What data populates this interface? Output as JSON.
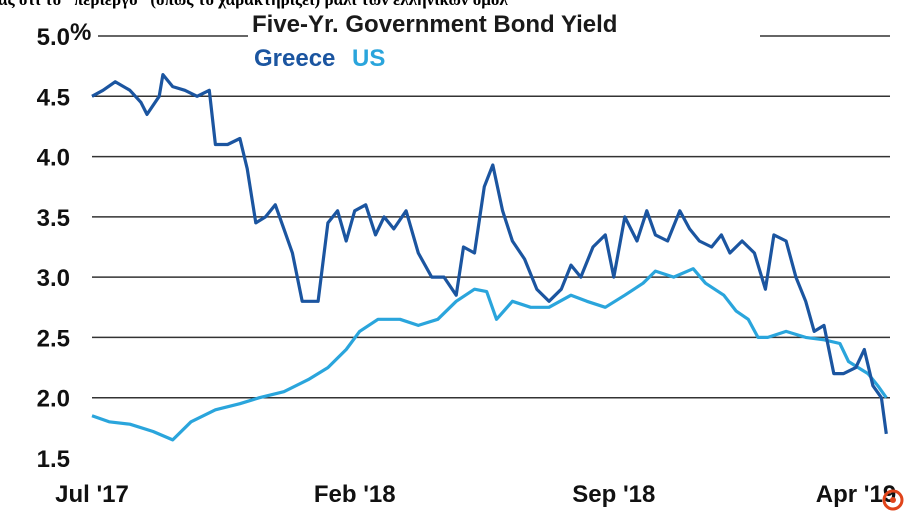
{
  "top_text": "ας ότι το “περιεργο” (όπως το χαρακτηρίζει) ράλι των ελληνικών ομολ",
  "chart_data": {
    "type": "line",
    "title": "Five-Yr. Government Bond Yield",
    "xlabel": "",
    "ylabel": "",
    "y_unit_label": "%",
    "ylim": [
      1.5,
      5.0
    ],
    "y_ticks": [
      "5.0",
      "4.5",
      "4.0",
      "3.5",
      "3.0",
      "2.5",
      "2.0",
      "1.5"
    ],
    "y_tick_values": [
      5.0,
      4.5,
      4.0,
      3.5,
      3.0,
      2.5,
      2.0,
      1.5
    ],
    "x_ticks": [
      "Jul '17",
      "Feb '18",
      "Sep '18",
      "Apr '19"
    ],
    "x_tick_dates": [
      "2017-07-01",
      "2018-02-01",
      "2018-09-01",
      "2019-04-01"
    ],
    "xlim": [
      "2017-07-01",
      "2019-04-15"
    ],
    "grid": "horizontal",
    "legend_position": "top-left",
    "series": [
      {
        "name": "Greece",
        "color": "#1b55a0",
        "points": [
          [
            "2017-07-01",
            4.5
          ],
          [
            "2017-07-10",
            4.55
          ],
          [
            "2017-07-20",
            4.62
          ],
          [
            "2017-08-01",
            4.55
          ],
          [
            "2017-08-10",
            4.45
          ],
          [
            "2017-08-15",
            4.35
          ],
          [
            "2017-08-25",
            4.5
          ],
          [
            "2017-08-28",
            4.68
          ],
          [
            "2017-09-05",
            4.58
          ],
          [
            "2017-09-15",
            4.55
          ],
          [
            "2017-09-25",
            4.5
          ],
          [
            "2017-10-05",
            4.55
          ],
          [
            "2017-10-10",
            4.1
          ],
          [
            "2017-10-20",
            4.1
          ],
          [
            "2017-10-30",
            4.15
          ],
          [
            "2017-11-05",
            3.9
          ],
          [
            "2017-11-12",
            3.45
          ],
          [
            "2017-11-20",
            3.5
          ],
          [
            "2017-11-28",
            3.6
          ],
          [
            "2017-12-05",
            3.4
          ],
          [
            "2017-12-12",
            3.2
          ],
          [
            "2017-12-20",
            2.8
          ],
          [
            "2018-01-02",
            2.8
          ],
          [
            "2018-01-10",
            3.45
          ],
          [
            "2018-01-18",
            3.55
          ],
          [
            "2018-01-25",
            3.3
          ],
          [
            "2018-02-01",
            3.55
          ],
          [
            "2018-02-10",
            3.6
          ],
          [
            "2018-02-18",
            3.35
          ],
          [
            "2018-02-25",
            3.5
          ],
          [
            "2018-03-05",
            3.4
          ],
          [
            "2018-03-15",
            3.55
          ],
          [
            "2018-03-25",
            3.2
          ],
          [
            "2018-04-05",
            3.0
          ],
          [
            "2018-04-15",
            3.0
          ],
          [
            "2018-04-25",
            2.85
          ],
          [
            "2018-05-01",
            3.25
          ],
          [
            "2018-05-10",
            3.2
          ],
          [
            "2018-05-18",
            3.75
          ],
          [
            "2018-05-25",
            3.93
          ],
          [
            "2018-06-02",
            3.55
          ],
          [
            "2018-06-10",
            3.3
          ],
          [
            "2018-06-20",
            3.15
          ],
          [
            "2018-06-30",
            2.9
          ],
          [
            "2018-07-10",
            2.8
          ],
          [
            "2018-07-20",
            2.9
          ],
          [
            "2018-07-28",
            3.1
          ],
          [
            "2018-08-05",
            3.0
          ],
          [
            "2018-08-15",
            3.25
          ],
          [
            "2018-08-25",
            3.35
          ],
          [
            "2018-09-01",
            3.0
          ],
          [
            "2018-09-10",
            3.5
          ],
          [
            "2018-09-20",
            3.3
          ],
          [
            "2018-09-28",
            3.55
          ],
          [
            "2018-10-05",
            3.35
          ],
          [
            "2018-10-15",
            3.3
          ],
          [
            "2018-10-25",
            3.55
          ],
          [
            "2018-11-02",
            3.4
          ],
          [
            "2018-11-10",
            3.3
          ],
          [
            "2018-11-20",
            3.25
          ],
          [
            "2018-11-28",
            3.35
          ],
          [
            "2018-12-05",
            3.2
          ],
          [
            "2018-12-15",
            3.3
          ],
          [
            "2018-12-25",
            3.2
          ],
          [
            "2019-01-03",
            2.9
          ],
          [
            "2019-01-10",
            3.35
          ],
          [
            "2019-01-20",
            3.3
          ],
          [
            "2019-01-28",
            3.0
          ],
          [
            "2019-02-05",
            2.8
          ],
          [
            "2019-02-12",
            2.55
          ],
          [
            "2019-02-20",
            2.6
          ],
          [
            "2019-02-28",
            2.2
          ],
          [
            "2019-03-08",
            2.2
          ],
          [
            "2019-03-18",
            2.25
          ],
          [
            "2019-03-25",
            2.4
          ],
          [
            "2019-04-01",
            2.1
          ],
          [
            "2019-04-08",
            2.0
          ],
          [
            "2019-04-12",
            1.7
          ]
        ]
      },
      {
        "name": "US",
        "color": "#2aa5dc",
        "points": [
          [
            "2017-07-01",
            1.85
          ],
          [
            "2017-07-15",
            1.8
          ],
          [
            "2017-08-01",
            1.78
          ],
          [
            "2017-08-20",
            1.72
          ],
          [
            "2017-09-05",
            1.65
          ],
          [
            "2017-09-20",
            1.8
          ],
          [
            "2017-10-10",
            1.9
          ],
          [
            "2017-10-30",
            1.95
          ],
          [
            "2017-11-15",
            2.0
          ],
          [
            "2017-12-05",
            2.05
          ],
          [
            "2017-12-25",
            2.15
          ],
          [
            "2018-01-10",
            2.25
          ],
          [
            "2018-01-25",
            2.4
          ],
          [
            "2018-02-05",
            2.55
          ],
          [
            "2018-02-20",
            2.65
          ],
          [
            "2018-03-10",
            2.65
          ],
          [
            "2018-03-25",
            2.6
          ],
          [
            "2018-04-10",
            2.65
          ],
          [
            "2018-04-25",
            2.8
          ],
          [
            "2018-05-10",
            2.9
          ],
          [
            "2018-05-20",
            2.88
          ],
          [
            "2018-05-28",
            2.65
          ],
          [
            "2018-06-10",
            2.8
          ],
          [
            "2018-06-25",
            2.75
          ],
          [
            "2018-07-10",
            2.75
          ],
          [
            "2018-07-28",
            2.85
          ],
          [
            "2018-08-10",
            2.8
          ],
          [
            "2018-08-25",
            2.75
          ],
          [
            "2018-09-10",
            2.85
          ],
          [
            "2018-09-25",
            2.95
          ],
          [
            "2018-10-05",
            3.05
          ],
          [
            "2018-10-20",
            3.0
          ],
          [
            "2018-11-05",
            3.07
          ],
          [
            "2018-11-15",
            2.95
          ],
          [
            "2018-11-30",
            2.85
          ],
          [
            "2018-12-10",
            2.72
          ],
          [
            "2018-12-20",
            2.65
          ],
          [
            "2018-12-28",
            2.5
          ],
          [
            "2019-01-05",
            2.5
          ],
          [
            "2019-01-20",
            2.55
          ],
          [
            "2019-02-05",
            2.5
          ],
          [
            "2019-02-20",
            2.48
          ],
          [
            "2019-03-05",
            2.45
          ],
          [
            "2019-03-12",
            2.3
          ],
          [
            "2019-03-20",
            2.25
          ],
          [
            "2019-03-28",
            2.2
          ],
          [
            "2019-04-05",
            2.1
          ],
          [
            "2019-04-12",
            2.0
          ]
        ]
      }
    ]
  }
}
